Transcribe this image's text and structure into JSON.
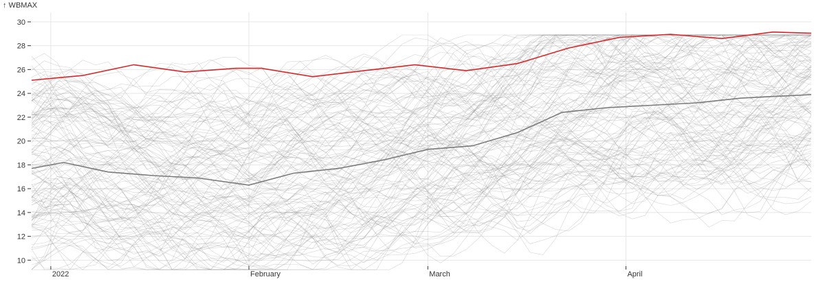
{
  "chart_data": {
    "type": "line",
    "ylabel": "↑ WBMAX",
    "ylim": [
      9.5,
      30.8
    ],
    "xlim": [
      "2021-12-29",
      "2022-04-30"
    ],
    "y_ticks": [
      10,
      12,
      14,
      16,
      18,
      20,
      22,
      24,
      26,
      28,
      30
    ],
    "x_ticks": [
      {
        "label": "2022",
        "date": "2022-01-01"
      },
      {
        "label": "February",
        "date": "2022-02-01"
      },
      {
        "label": "March",
        "date": "2022-03-01"
      },
      {
        "label": "April",
        "date": "2022-04-01"
      }
    ],
    "grid": true,
    "colors": {
      "max": "#d62728",
      "mean": "#7a7a7a",
      "ensemble": "#8a8a8a"
    },
    "series": [
      {
        "role": "max",
        "x": [
          "2021-12-29",
          "2022-01-06",
          "2022-01-14",
          "2022-01-22",
          "2022-01-30",
          "2022-02-03",
          "2022-02-11",
          "2022-02-19",
          "2022-02-27",
          "2022-03-07",
          "2022-03-15",
          "2022-03-23",
          "2022-03-31",
          "2022-04-08",
          "2022-04-16",
          "2022-04-24",
          "2022-04-30"
        ],
        "values": [
          25.1,
          25.5,
          26.4,
          25.8,
          26.1,
          26.1,
          25.4,
          25.9,
          26.4,
          25.9,
          26.5,
          27.8,
          28.7,
          28.95,
          28.6,
          29.15,
          29.05
        ]
      },
      {
        "role": "mean",
        "x": [
          "2021-12-29",
          "2022-01-03",
          "2022-01-10",
          "2022-01-17",
          "2022-01-24",
          "2022-02-01",
          "2022-02-08",
          "2022-02-15",
          "2022-02-22",
          "2022-03-01",
          "2022-03-08",
          "2022-03-15",
          "2022-03-22",
          "2022-03-29",
          "2022-04-05",
          "2022-04-12",
          "2022-04-19",
          "2022-04-30"
        ],
        "values": [
          17.7,
          18.2,
          17.4,
          17.1,
          16.9,
          16.3,
          17.3,
          17.7,
          18.4,
          19.3,
          19.6,
          20.7,
          22.4,
          22.8,
          23.0,
          23.2,
          23.6,
          23.9
        ]
      }
    ]
  }
}
